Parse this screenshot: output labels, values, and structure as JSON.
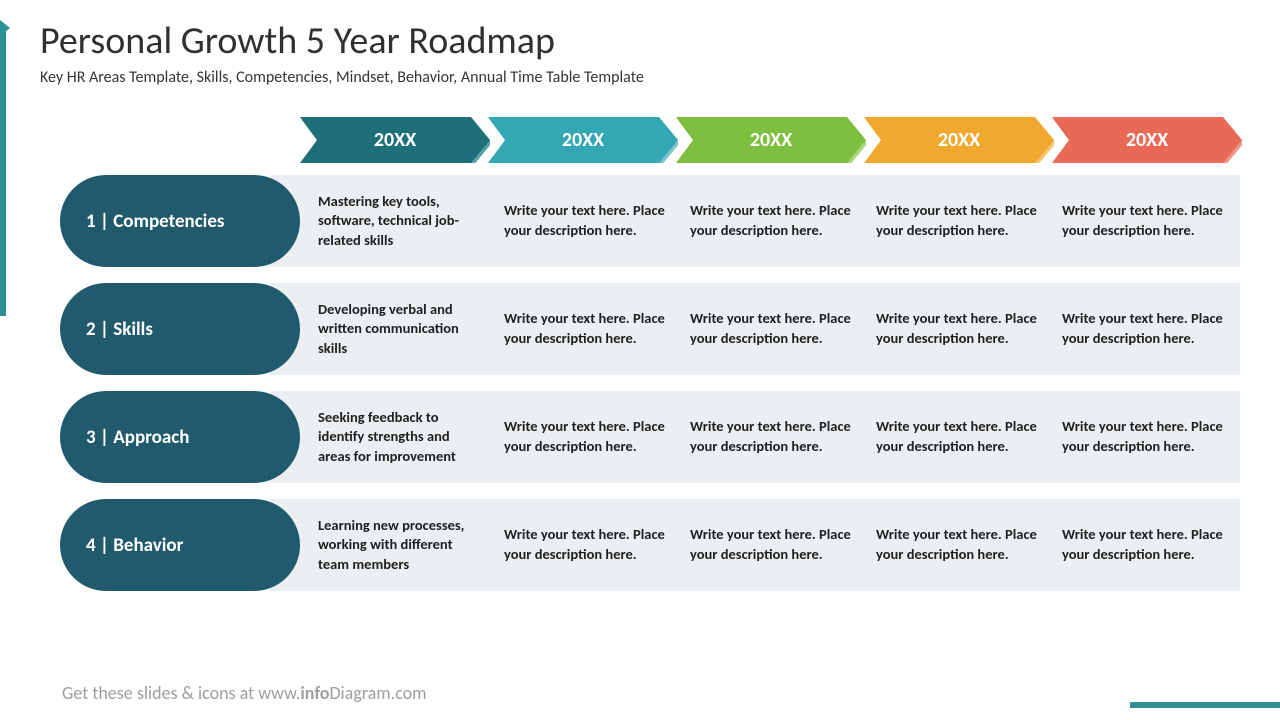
{
  "title": "Personal Growth 5 Year Roadmap",
  "subtitle": "Key HR Areas Template, Skills, Competencies, Mindset, Behavior, Annual Time Table Template",
  "footer_prefix": "Get these slides & icons at www.",
  "footer_bold": "info",
  "footer_rest": "Diagram.com",
  "years": [
    {
      "label": "20XX",
      "color": "#1f6f7a",
      "shadow": "#58a0a7"
    },
    {
      "label": "20XX",
      "color": "#34a7b5",
      "shadow": "#7cc4cc"
    },
    {
      "label": "20XX",
      "color": "#7fbf3f",
      "shadow": "#a9d67c"
    },
    {
      "label": "20XX",
      "color": "#f0a92e",
      "shadow": "#f5c46e"
    },
    {
      "label": "20XX",
      "color": "#e86a56",
      "shadow": "#ee9687"
    }
  ],
  "placeholder": "Write your text here. Place your description here.",
  "rows": [
    {
      "label": "1 | Competencies",
      "cells": [
        "Mastering key tools, software, technical job-related skills",
        "Write your text here. Place your description here.",
        "Write your text here. Place your description here.",
        "Write your text here. Place your description here.",
        "Write your text here. Place your description here."
      ]
    },
    {
      "label": "2 | Skills",
      "cells": [
        "Developing verbal and written communication skills",
        "Write your text here. Place your description here.",
        "Write your text here. Place your description here.",
        "Write your text here. Place your description here.",
        "Write your text here. Place your description here."
      ]
    },
    {
      "label": "3 | Approach",
      "cells": [
        "Seeking feedback to identify strengths and areas for improvement",
        "Write your text here. Place your description here.",
        "Write your text here. Place your description here.",
        "Write your text here. Place your description here.",
        "Write your text here. Place your description here."
      ]
    },
    {
      "label": "4 | Behavior",
      "cells": [
        "Learning new processes, working with different team members",
        "Write your text here. Place your description here.",
        "Write your text here. Place your description here.",
        "Write your text here. Place your description here.",
        "Write your text here. Place your description here."
      ]
    }
  ],
  "accent_color": "#2f8f96",
  "row_label_bg": "#205a6c",
  "cell_bg": "#eceff2"
}
